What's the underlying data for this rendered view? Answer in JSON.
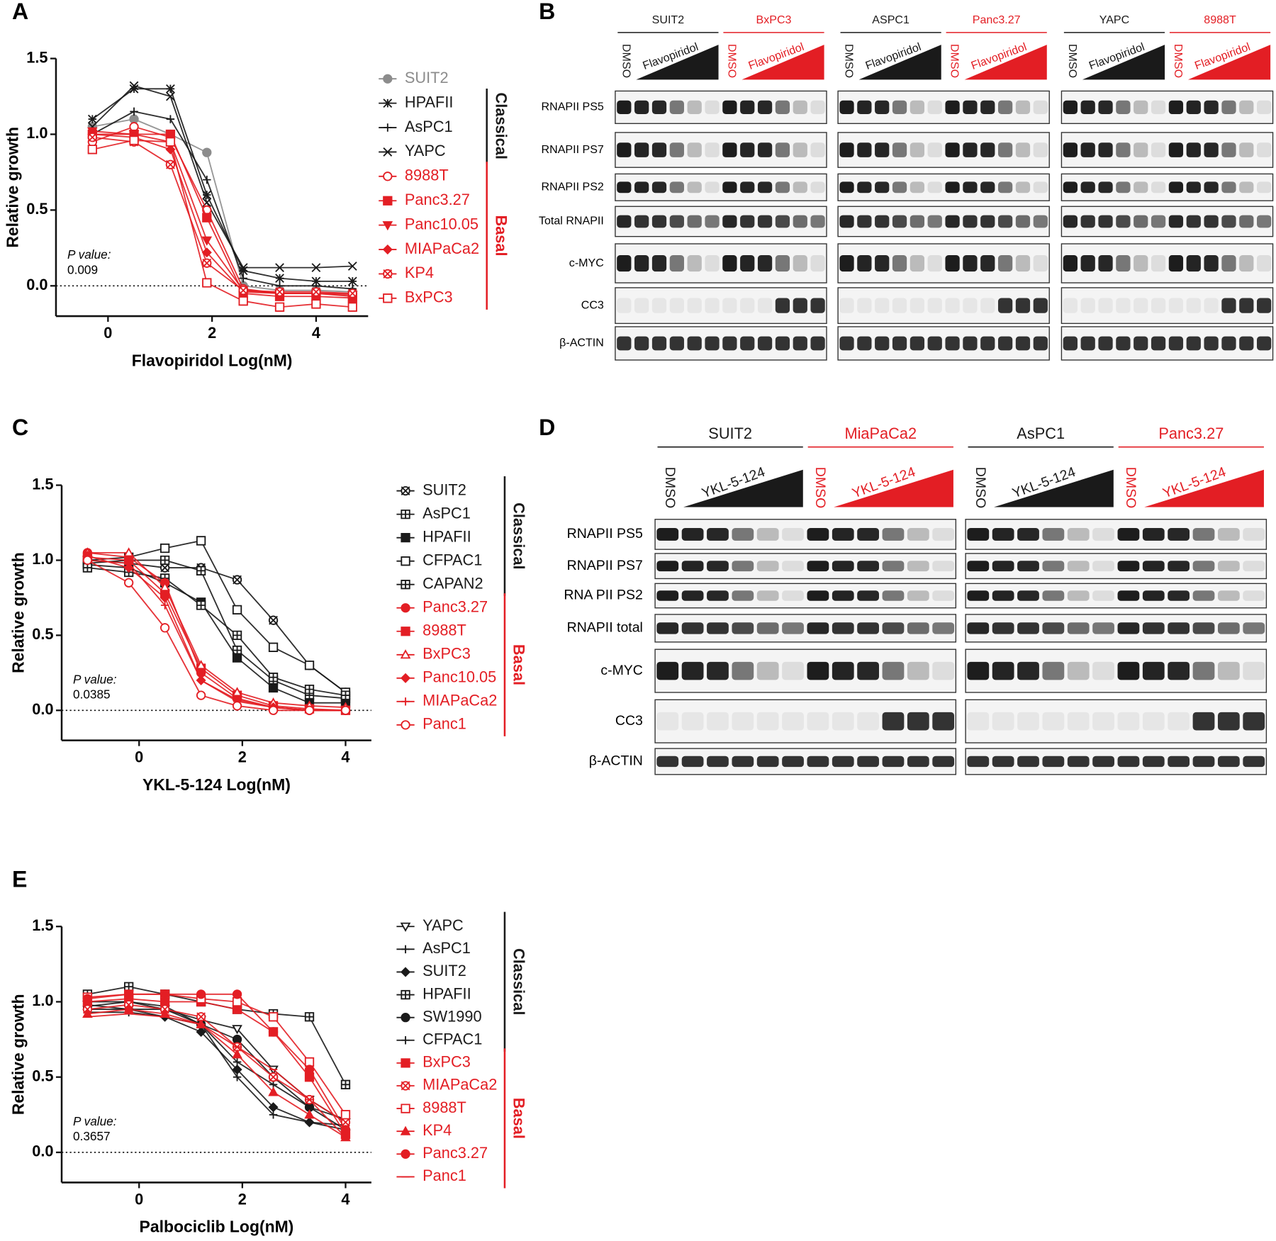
{
  "chart_data": [
    {
      "panel": "A",
      "type": "line",
      "x_label": "Flavopiridol Log(nM)",
      "y_label": "Relative growth",
      "p_value_label": "P value:",
      "p_value": 0.009,
      "zero_line": true,
      "xlim": [
        -1,
        5
      ],
      "xticks": [
        0,
        2,
        4
      ],
      "ylim": [
        -0.2,
        1.5
      ],
      "yticks": [
        {
          "value": 0,
          "label": "0.0"
        },
        0.5,
        {
          "value": 1,
          "label": "1.0"
        },
        1.5
      ],
      "x": [
        -0.3,
        0.5,
        1.2,
        1.9,
        2.6,
        3.3,
        4.0,
        4.7
      ],
      "groups": [
        {
          "label": "Classical",
          "color": "#1a1a1a"
        },
        {
          "label": "Basal",
          "color": "#e31e24"
        }
      ],
      "series": [
        {
          "name": "SUIT2",
          "color": "#8c8c8c",
          "marker": "circle",
          "values": [
            1.05,
            1.1,
            1.0,
            0.88,
            0.0,
            -0.03,
            -0.03,
            -0.04
          ]
        },
        {
          "name": "HPAFII",
          "color": "#1a1a1a",
          "marker": "star",
          "values": [
            1.1,
            1.3,
            1.3,
            0.6,
            0.1,
            0.05,
            0.03,
            0.03
          ]
        },
        {
          "name": "AsPC1",
          "color": "#1a1a1a",
          "marker": "plus",
          "values": [
            1.0,
            1.15,
            1.1,
            0.7,
            0.05,
            0.0,
            0.0,
            -0.02
          ]
        },
        {
          "name": "YAPC",
          "color": "#1a1a1a",
          "marker": "x",
          "values": [
            1.05,
            1.32,
            1.25,
            0.55,
            0.12,
            0.12,
            0.12,
            0.13
          ]
        },
        {
          "name": "8988T",
          "color": "#e31e24",
          "marker": "circle-open",
          "values": [
            0.95,
            1.05,
            0.98,
            0.5,
            -0.02,
            -0.05,
            -0.05,
            -0.07
          ]
        },
        {
          "name": "Panc3.27",
          "color": "#e31e24",
          "marker": "square",
          "values": [
            1.0,
            1.0,
            1.0,
            0.45,
            -0.05,
            -0.07,
            -0.07,
            -0.08
          ]
        },
        {
          "name": "Panc10.05",
          "color": "#e31e24",
          "marker": "triangle-down",
          "values": [
            1.02,
            1.0,
            0.95,
            0.3,
            -0.03,
            -0.05,
            -0.05,
            -0.06
          ]
        },
        {
          "name": "MIAPaCa2",
          "color": "#e31e24",
          "marker": "diamond",
          "values": [
            1.0,
            0.98,
            0.9,
            0.22,
            -0.04,
            -0.05,
            -0.05,
            -0.05
          ]
        },
        {
          "name": "KP4",
          "color": "#e31e24",
          "marker": "circle-cross",
          "values": [
            0.98,
            0.95,
            0.8,
            0.15,
            -0.03,
            -0.04,
            -0.04,
            -0.05
          ]
        },
        {
          "name": "BxPC3",
          "color": "#e31e24",
          "marker": "square-open",
          "values": [
            0.9,
            0.96,
            0.95,
            0.02,
            -0.1,
            -0.14,
            -0.12,
            -0.14
          ]
        }
      ]
    },
    {
      "panel": "C",
      "type": "line",
      "x_label": "YKL-5-124 Log(nM)",
      "y_label": "Relative growth",
      "p_value_label": "P value:",
      "p_value": 0.0385,
      "zero_line": true,
      "xlim": [
        -1.5,
        4.5
      ],
      "xticks": [
        0,
        2,
        4
      ],
      "ylim": [
        -0.2,
        1.5
      ],
      "yticks": [
        {
          "value": 0,
          "label": "0.0"
        },
        0.5,
        {
          "value": 1,
          "label": "1.0"
        },
        1.5
      ],
      "x": [
        -1,
        -0.2,
        0.5,
        1.2,
        1.9,
        2.6,
        3.3,
        4
      ],
      "groups": [
        {
          "label": "Classical",
          "color": "#1a1a1a"
        },
        {
          "label": "Basal",
          "color": "#e31e24"
        }
      ],
      "series": [
        {
          "name": "SUIT2",
          "color": "#1a1a1a",
          "marker": "circle-cross",
          "values": [
            1.0,
            0.98,
            0.95,
            0.95,
            0.87,
            0.6,
            0.3,
            0.12
          ]
        },
        {
          "name": "AsPC1",
          "color": "#1a1a1a",
          "marker": "square-cross",
          "values": [
            0.98,
            1.0,
            1.0,
            0.93,
            0.4,
            0.2,
            0.1,
            0.08
          ]
        },
        {
          "name": "HPAFII",
          "color": "#1a1a1a",
          "marker": "square",
          "values": [
            0.97,
            0.95,
            0.85,
            0.72,
            0.35,
            0.15,
            0.05,
            0.05
          ]
        },
        {
          "name": "CFPAC1",
          "color": "#1a1a1a",
          "marker": "square-open",
          "values": [
            1.0,
            1.02,
            1.08,
            1.13,
            0.67,
            0.42,
            0.3,
            0.12
          ]
        },
        {
          "name": "CAPAN2",
          "color": "#1a1a1a",
          "marker": "square-cross",
          "values": [
            0.95,
            0.92,
            0.88,
            0.7,
            0.5,
            0.22,
            0.14,
            0.1
          ]
        },
        {
          "name": "Panc3.27",
          "color": "#e31e24",
          "marker": "circle",
          "values": [
            1.05,
            1.02,
            0.85,
            0.25,
            0.08,
            0.02,
            0.0,
            0.0
          ]
        },
        {
          "name": "8988T",
          "color": "#e31e24",
          "marker": "square",
          "values": [
            1.02,
            1.0,
            0.78,
            0.28,
            0.1,
            0.03,
            0.01,
            0.0
          ]
        },
        {
          "name": "BxPC3",
          "color": "#e31e24",
          "marker": "triangle-open",
          "values": [
            1.05,
            1.05,
            0.82,
            0.3,
            0.12,
            0.05,
            0.03,
            0.02
          ]
        },
        {
          "name": "Panc10.05",
          "color": "#e31e24",
          "marker": "diamond",
          "values": [
            1.03,
            0.95,
            0.75,
            0.2,
            0.07,
            0.02,
            0.0,
            0.0
          ]
        },
        {
          "name": "MIAPaCa2",
          "color": "#e31e24",
          "marker": "plus",
          "values": [
            1.0,
            0.98,
            0.7,
            0.2,
            0.06,
            0.02,
            0.0,
            0.0
          ]
        },
        {
          "name": "Panc1",
          "color": "#e31e24",
          "marker": "circle-open",
          "values": [
            1.0,
            0.85,
            0.55,
            0.1,
            0.03,
            0.0,
            0.0,
            0.0
          ]
        }
      ]
    },
    {
      "panel": "E",
      "type": "line",
      "x_label": "Palbociclib Log(nM)",
      "y_label": "Relative growth",
      "p_value_label": "P value:",
      "p_value": 0.3657,
      "zero_line": true,
      "xlim": [
        -1.5,
        4.5
      ],
      "xticks": [
        0,
        2,
        4
      ],
      "ylim": [
        -0.2,
        1.5
      ],
      "yticks": [
        {
          "value": 0,
          "label": "0.0"
        },
        0.5,
        {
          "value": 1,
          "label": "1.0"
        },
        1.5
      ],
      "x": [
        -1,
        -0.2,
        0.5,
        1.2,
        1.9,
        2.6,
        3.3,
        4
      ],
      "groups": [
        {
          "label": "Classical",
          "color": "#1a1a1a"
        },
        {
          "label": "Basal",
          "color": "#e31e24"
        }
      ],
      "series": [
        {
          "name": "YAPC",
          "color": "#1a1a1a",
          "marker": "triangle-down-open",
          "values": [
            0.98,
            0.95,
            0.95,
            0.88,
            0.82,
            0.55,
            0.35,
            0.2
          ]
        },
        {
          "name": "AsPC1",
          "color": "#1a1a1a",
          "marker": "plus",
          "values": [
            1.0,
            1.0,
            0.97,
            0.85,
            0.6,
            0.45,
            0.3,
            0.22
          ]
        },
        {
          "name": "SUIT2",
          "color": "#1a1a1a",
          "marker": "diamond",
          "values": [
            0.95,
            0.95,
            0.9,
            0.8,
            0.55,
            0.3,
            0.2,
            0.15
          ]
        },
        {
          "name": "HPAFII",
          "color": "#1a1a1a",
          "marker": "square-cross",
          "values": [
            1.05,
            1.1,
            1.05,
            1.0,
            0.95,
            0.92,
            0.9,
            0.45
          ]
        },
        {
          "name": "SW1990",
          "color": "#1a1a1a",
          "marker": "circle",
          "values": [
            0.97,
            1.0,
            0.95,
            0.85,
            0.75,
            0.5,
            0.3,
            0.15
          ]
        },
        {
          "name": "CFPAC1",
          "color": "#1a1a1a",
          "marker": "plus",
          "values": [
            0.93,
            0.93,
            0.9,
            0.85,
            0.5,
            0.25,
            0.2,
            0.18
          ]
        },
        {
          "name": "BxPC3",
          "color": "#e31e24",
          "marker": "square",
          "values": [
            1.0,
            1.02,
            1.0,
            1.0,
            0.95,
            0.8,
            0.5,
            0.12
          ]
        },
        {
          "name": "MIAPaCa2",
          "color": "#e31e24",
          "marker": "circle-cross",
          "values": [
            0.95,
            0.98,
            0.95,
            0.9,
            0.7,
            0.5,
            0.35,
            0.2
          ]
        },
        {
          "name": "8988T",
          "color": "#e31e24",
          "marker": "square-open",
          "values": [
            1.03,
            1.05,
            1.05,
            1.02,
            1.0,
            0.9,
            0.6,
            0.25
          ]
        },
        {
          "name": "KP4",
          "color": "#e31e24",
          "marker": "triangle",
          "values": [
            0.92,
            0.95,
            0.92,
            0.85,
            0.65,
            0.4,
            0.25,
            0.1
          ]
        },
        {
          "name": "Panc3.27",
          "color": "#e31e24",
          "marker": "circle",
          "values": [
            1.02,
            1.05,
            1.05,
            1.05,
            1.05,
            0.8,
            0.55,
            0.15
          ]
        },
        {
          "name": "Panc1",
          "color": "#e31e24",
          "marker": "dash",
          "values": [
            0.9,
            0.92,
            0.9,
            0.85,
            0.7,
            0.55,
            0.35,
            0.1
          ]
        }
      ]
    }
  ],
  "blots": [
    {
      "panel": "B",
      "row_labels": [
        "RNAPII PS5",
        "RNAPII PS7",
        "RNAPII PS2",
        "Total RNAPII",
        "c-MYC",
        "CC3",
        "β-ACTIN"
      ],
      "blocks": [
        [
          {
            "cell": "SUIT2",
            "color": "#1a1a1a",
            "control": "DMSO",
            "treatment": "Flavopiridol"
          },
          {
            "cell": "BxPC3",
            "color": "#e31e24",
            "control": "DMSO",
            "treatment": "Flavopiridol"
          }
        ],
        [
          {
            "cell": "ASPC1",
            "color": "#1a1a1a",
            "control": "DMSO",
            "treatment": "Flavopiridol"
          },
          {
            "cell": "Panc3.27",
            "color": "#e31e24",
            "control": "DMSO",
            "treatment": "Flavopiridol"
          }
        ],
        [
          {
            "cell": "YAPC",
            "color": "#1a1a1a",
            "control": "DMSO",
            "treatment": "Flavopiridol"
          },
          {
            "cell": "8988T",
            "color": "#e31e24",
            "control": "DMSO",
            "treatment": "Flavopiridol"
          }
        ]
      ]
    },
    {
      "panel": "D",
      "row_labels": [
        "RNAPII PS5",
        "RNAPII PS7",
        "RNA PII PS2",
        "RNAPII total",
        "c-MYC",
        "CC3",
        "β-ACTIN"
      ],
      "blocks": [
        [
          {
            "cell": "SUIT2",
            "color": "#1a1a1a",
            "control": "DMSO",
            "treatment": "YKL-5-124"
          },
          {
            "cell": "MiaPaCa2",
            "color": "#e31e24",
            "control": "DMSO",
            "treatment": "YKL-5-124"
          }
        ],
        [
          {
            "cell": "AsPC1",
            "color": "#1a1a1a",
            "control": "DMSO",
            "treatment": "YKL-5-124"
          },
          {
            "cell": "Panc3.27",
            "color": "#e31e24",
            "control": "DMSO",
            "treatment": "YKL-5-124"
          }
        ]
      ]
    }
  ]
}
